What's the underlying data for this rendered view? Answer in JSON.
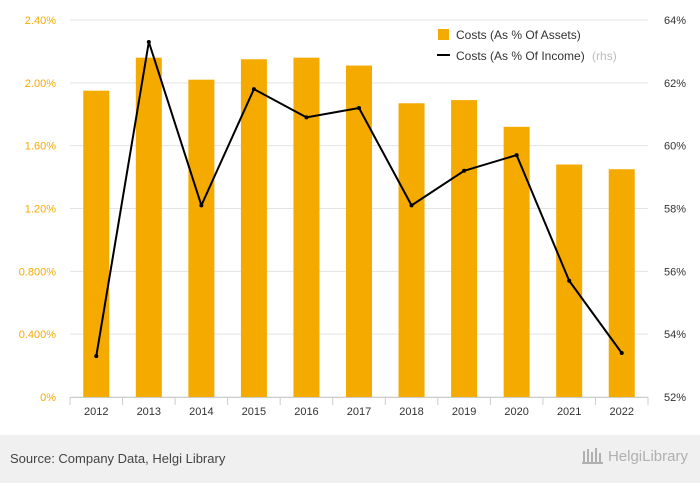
{
  "chart_data": {
    "type": "bar+line",
    "categories": [
      "2012",
      "2013",
      "2014",
      "2015",
      "2016",
      "2017",
      "2018",
      "2019",
      "2020",
      "2021",
      "2022"
    ],
    "series": [
      {
        "name": "Costs (As % Of Assets)",
        "kind": "bar",
        "axis": "left",
        "color": "#f5aa00",
        "values": [
          1.95,
          2.16,
          2.02,
          2.15,
          2.16,
          2.11,
          1.87,
          1.89,
          1.72,
          1.48,
          1.45
        ]
      },
      {
        "name": "Costs (As % Of Income)",
        "rhs_tag": "(rhs)",
        "kind": "line",
        "axis": "right",
        "color": "#000000",
        "values": [
          53.3,
          63.3,
          58.1,
          61.8,
          60.9,
          61.2,
          58.1,
          59.2,
          59.7,
          55.7,
          53.4
        ]
      }
    ],
    "y_left": {
      "min": 0,
      "max": 2.4,
      "ticks": [
        0,
        0.4,
        0.8,
        1.2,
        1.6,
        2.0,
        2.4
      ],
      "tick_labels": [
        "0%",
        "0.400%",
        "0.800%",
        "1.20%",
        "1.60%",
        "2.00%",
        "2.40%"
      ],
      "label_color": "#f5aa00"
    },
    "y_right": {
      "min": 52,
      "max": 64,
      "ticks": [
        52,
        54,
        56,
        58,
        60,
        62,
        64
      ],
      "tick_labels": [
        "52%",
        "54%",
        "56%",
        "58%",
        "60%",
        "62%",
        "64%"
      ],
      "label_color": "#333333"
    },
    "grid": true,
    "legend_position": "top-right"
  },
  "footer": {
    "source": "Source: Company Data, Helgi Library",
    "logo_text": "HelgiLibrary"
  }
}
